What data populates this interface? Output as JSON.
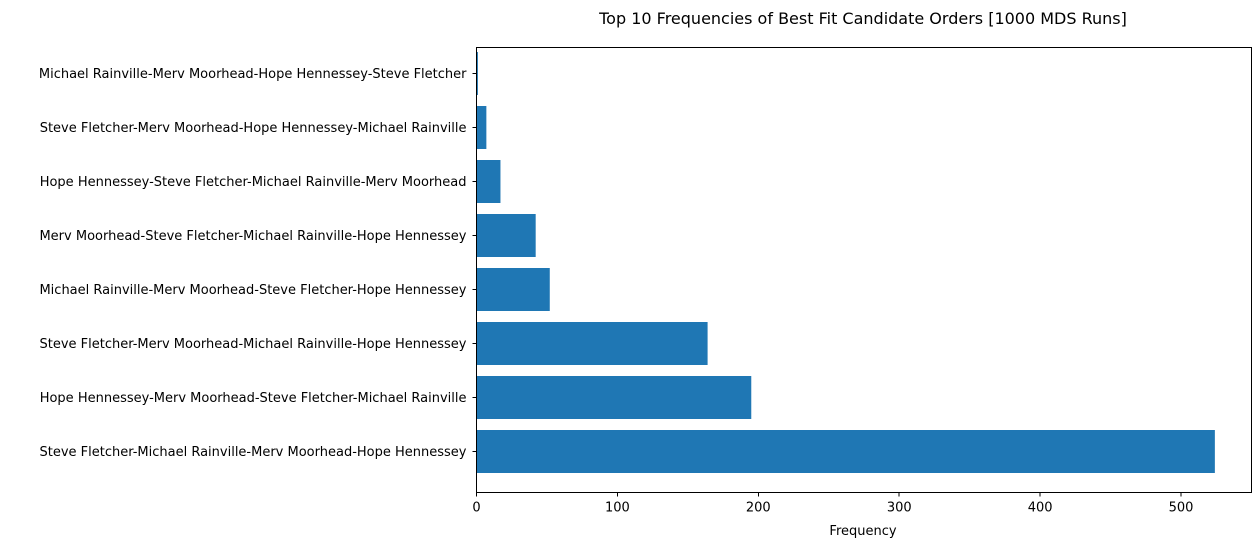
{
  "chart_data": {
    "type": "bar",
    "orientation": "horizontal",
    "title": "Top 10 Frequencies of Best Fit Candidate Orders [1000 MDS Runs]",
    "xlabel": "Frequency",
    "ylabel": "",
    "categories": [
      "Steve Fletcher-Michael Rainville-Merv Moorhead-Hope Hennessey",
      "Hope Hennessey-Merv Moorhead-Steve Fletcher-Michael Rainville",
      "Steve Fletcher-Merv Moorhead-Michael Rainville-Hope Hennessey",
      "Michael Rainville-Merv Moorhead-Steve Fletcher-Hope Hennessey",
      "Merv Moorhead-Steve Fletcher-Michael Rainville-Hope Hennessey",
      "Hope Hennessey-Steve Fletcher-Michael Rainville-Merv Moorhead",
      "Steve Fletcher-Merv Moorhead-Hope Hennessey-Michael Rainville",
      "Michael Rainville-Merv Moorhead-Hope Hennessey-Steve Fletcher"
    ],
    "values": [
      524,
      195,
      164,
      52,
      42,
      17,
      7,
      1
    ],
    "xlim": [
      0,
      550
    ],
    "xticks": [
      0,
      100,
      200,
      300,
      400,
      500
    ],
    "grid": false,
    "bar_color": "#1f77b4"
  }
}
